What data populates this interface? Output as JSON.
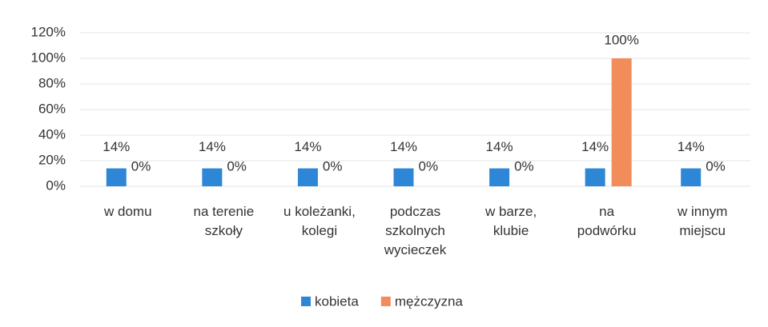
{
  "chart_data": {
    "type": "bar",
    "categories": [
      [
        "w domu"
      ],
      [
        "na terenie",
        "szkoły"
      ],
      [
        "u koleżanki,",
        "kolegi"
      ],
      [
        "podczas",
        "szkolnych",
        "wycieczek"
      ],
      [
        "w barze,",
        "klubie"
      ],
      [
        "na",
        "podwórku"
      ],
      [
        "w innym",
        "miejscu"
      ]
    ],
    "series": [
      {
        "name": "kobieta",
        "color": "#2e86d6",
        "values": [
          14,
          14,
          14,
          14,
          14,
          14,
          14
        ],
        "value_labels": [
          "14%",
          "14%",
          "14%",
          "14%",
          "14%",
          "14%",
          "14%"
        ]
      },
      {
        "name": "mężczyzna",
        "color": "#f28c5a",
        "values": [
          0,
          0,
          0,
          0,
          0,
          100,
          0
        ],
        "value_labels": [
          "0%",
          "0%",
          "0%",
          "0%",
          "0%",
          "100%",
          "0%"
        ]
      }
    ],
    "ylim": [
      0,
      120
    ],
    "yticks": [
      {
        "value": 0,
        "label": "0%"
      },
      {
        "value": 20,
        "label": "20%"
      },
      {
        "value": 40,
        "label": "40%"
      },
      {
        "value": 60,
        "label": "60%"
      },
      {
        "value": 80,
        "label": "80%"
      },
      {
        "value": 100,
        "label": "100%"
      },
      {
        "value": 120,
        "label": "120%"
      }
    ],
    "grid": true,
    "legend": "bottom"
  }
}
